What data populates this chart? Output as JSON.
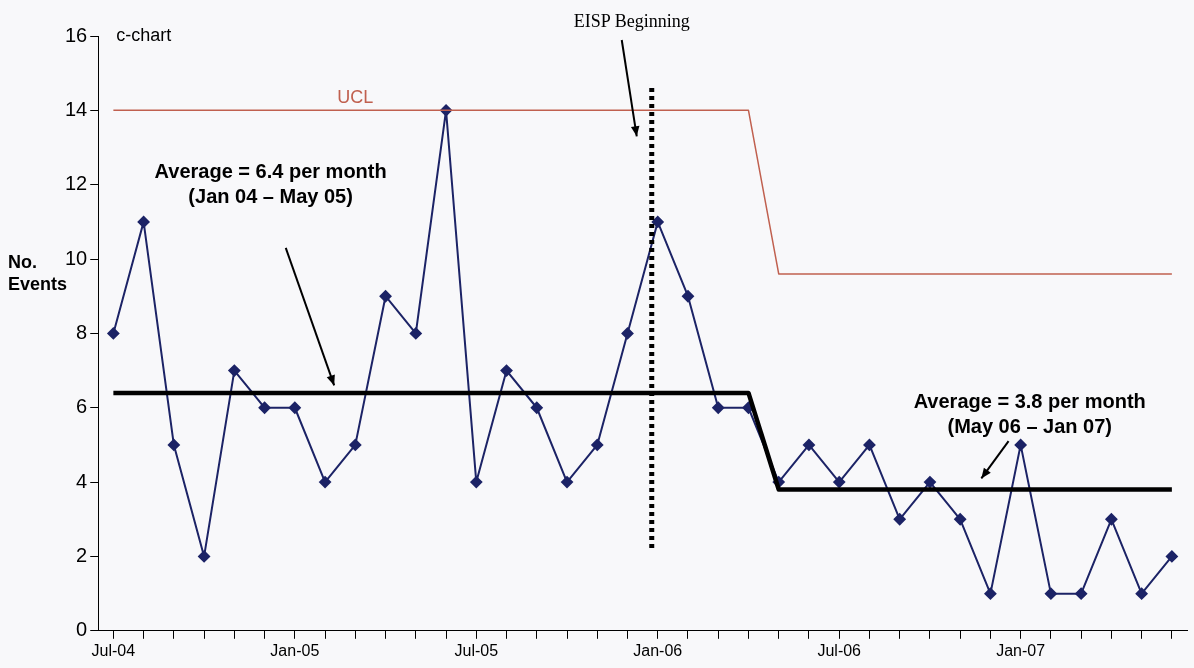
{
  "chart_data": {
    "type": "line",
    "title": "c-chart",
    "ylabel": "No. Events",
    "categories": [
      "Jul-04",
      null,
      null,
      null,
      null,
      null,
      "Jan-05",
      null,
      null,
      null,
      null,
      null,
      "Jul-05",
      null,
      null,
      null,
      null,
      null,
      "Jan-06",
      null,
      null,
      null,
      null,
      null,
      "Jul-06",
      null,
      null,
      null,
      null,
      null,
      "Jan-07",
      null,
      null,
      null,
      null,
      null
    ],
    "series": [
      {
        "name": "UCL",
        "color": "#c0604f",
        "marker": "none",
        "values": [
          14,
          14,
          14,
          14,
          14,
          14,
          14,
          14,
          14,
          14,
          14,
          14,
          14,
          14,
          14,
          14,
          14,
          14,
          14,
          14,
          14,
          14,
          9.6,
          9.6,
          9.6,
          9.6,
          9.6,
          9.6,
          9.6,
          9.6,
          9.6,
          9.6,
          9.6,
          9.6,
          9.6,
          9.6
        ]
      },
      {
        "color": "#000000",
        "marker": "none",
        "values": [
          6.4,
          6.4,
          6.4,
          6.4,
          6.4,
          6.4,
          6.4,
          6.4,
          6.4,
          6.4,
          6.4,
          6.4,
          6.4,
          6.4,
          6.4,
          6.4,
          6.4,
          6.4,
          6.4,
          6.4,
          6.4,
          6.4,
          3.8,
          3.8,
          3.8,
          3.8,
          3.8,
          3.8,
          3.8,
          3.8,
          3.8,
          3.8,
          3.8,
          3.8,
          3.8,
          3.8
        ]
      },
      {
        "color": "#1c2366",
        "marker": "diamond",
        "values": [
          8,
          11,
          5,
          2,
          7,
          6,
          6,
          4,
          5,
          9,
          8,
          14,
          4,
          7,
          6,
          4,
          5,
          8,
          11,
          9,
          6,
          6,
          4,
          5,
          4,
          5,
          3,
          4,
          3,
          1,
          5,
          1,
          1,
          3,
          1,
          2
        ]
      }
    ],
    "ref_lines": [
      {
        "axis": "x",
        "value": "Jan-06",
        "label": "EISP Beginning",
        "color": "#000000",
        "line_style": "dotted"
      }
    ],
    "annotations": [
      "Average = 6.4 per month (Jan 04 – May 05)",
      "Average = 3.8 per month (May 06 – Jan 07)"
    ],
    "ylim": [
      0,
      16
    ],
    "yticks": [
      0,
      2,
      4,
      6,
      8,
      10,
      12,
      14,
      16
    ],
    "legend": false,
    "line_style": "solid"
  }
}
